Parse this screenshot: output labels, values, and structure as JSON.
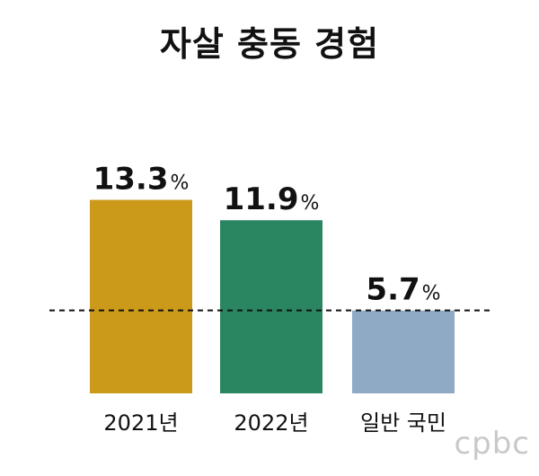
{
  "chart_data": {
    "type": "bar",
    "title": "자살 충동 경험",
    "categories": [
      "2021년",
      "2022년",
      "일반 국민"
    ],
    "values": [
      13.3,
      11.9,
      5.7
    ],
    "value_labels": [
      "13.3",
      "11.9",
      "5.7"
    ],
    "unit": "%",
    "colors": [
      "#cc9a1a",
      "#2a8660",
      "#8faac4"
    ],
    "reference_line": 5.7,
    "ylim": [
      0,
      14
    ],
    "xlabel": "",
    "ylabel": "",
    "grid": false,
    "legend": "none"
  },
  "watermark": "cpbc"
}
